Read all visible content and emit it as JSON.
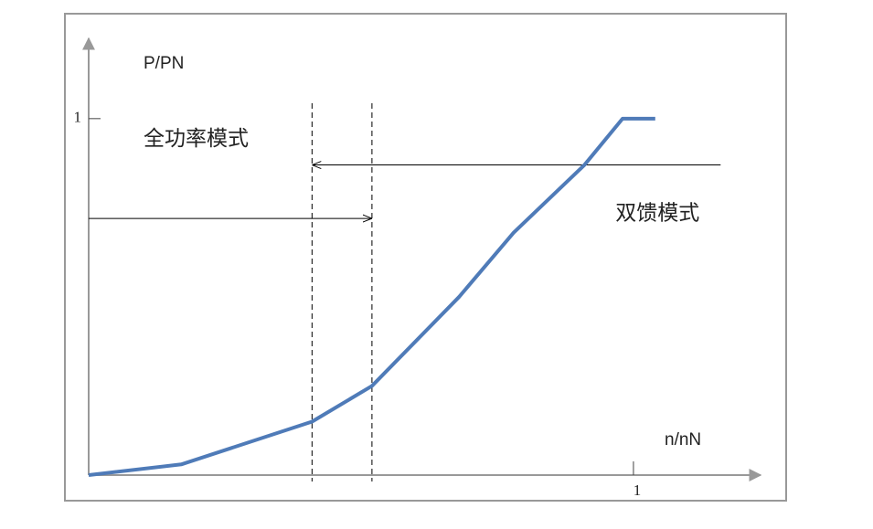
{
  "chart_data": {
    "type": "line",
    "y_label": "P/PN",
    "x_label": "n/nN",
    "x": [
      0,
      0.17,
      0.41,
      0.52,
      0.68,
      0.78,
      0.91,
      0.98,
      1.04
    ],
    "series": [
      {
        "color": "#4f7bb8",
        "values": [
          0,
          0.03,
          0.15,
          0.25,
          0.5,
          0.68,
          0.87,
          1,
          1
        ]
      }
    ],
    "xlim": [
      0,
      1.235
    ],
    "ylim": [
      0,
      1.22
    ],
    "xticks": [
      1
    ],
    "yticks": [
      1
    ],
    "vlines": [
      0.41,
      0.52
    ],
    "arrows": [
      {
        "label": "全功率模式",
        "from": 0,
        "to": 0.52,
        "y": 0.72
      },
      {
        "label": "双馈模式",
        "from": 1.16,
        "to": 0.41,
        "y": 0.87
      }
    ]
  }
}
